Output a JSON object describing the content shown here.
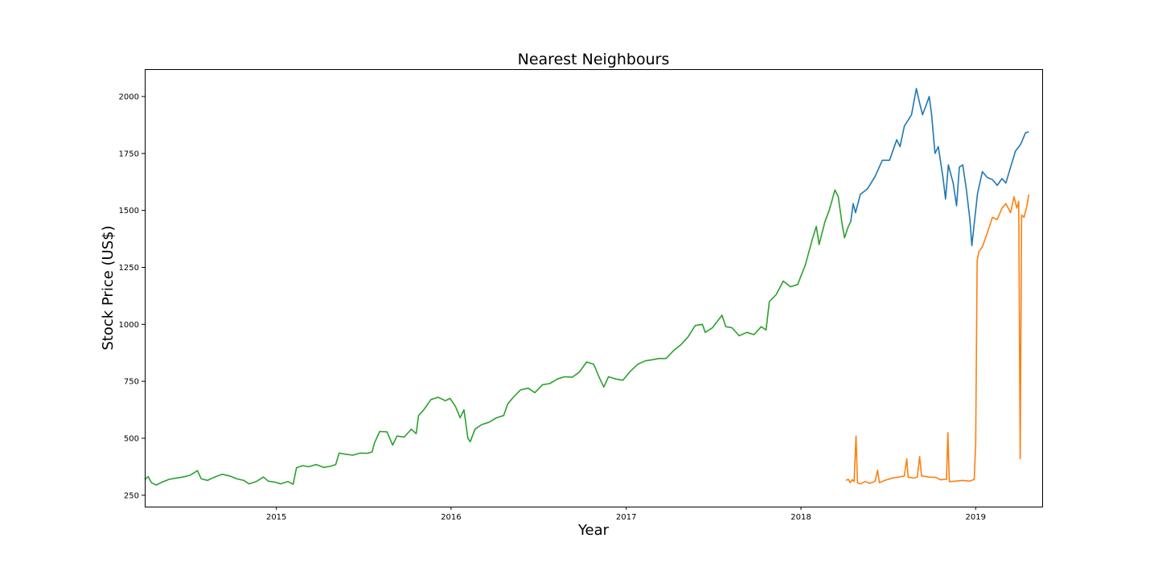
{
  "chart_data": {
    "type": "line",
    "title": "Nearest Neighbours",
    "xlabel": "Year",
    "ylabel": "Stock Price (US$)",
    "x_axis_type": "date",
    "xlim": [
      "2014-04-01",
      "2019-05-20"
    ],
    "ylim": [
      200,
      2120
    ],
    "x_ticks": [
      {
        "date": "2015-01-01",
        "label": "2015"
      },
      {
        "date": "2016-01-01",
        "label": "2016"
      },
      {
        "date": "2017-01-01",
        "label": "2017"
      },
      {
        "date": "2018-01-01",
        "label": "2018"
      },
      {
        "date": "2019-01-01",
        "label": "2019"
      }
    ],
    "y_ticks": [
      250,
      500,
      750,
      1000,
      1250,
      1500,
      1750,
      2000
    ],
    "grid": false,
    "legend": "none",
    "series": [
      {
        "color": "#2ca02c",
        "points": [
          [
            "2014-04-01",
            318
          ],
          [
            "2014-04-08",
            332
          ],
          [
            "2014-04-15",
            305
          ],
          [
            "2014-04-25",
            295
          ],
          [
            "2014-05-08",
            308
          ],
          [
            "2014-05-22",
            320
          ],
          [
            "2014-06-05",
            325
          ],
          [
            "2014-06-20",
            330
          ],
          [
            "2014-07-05",
            338
          ],
          [
            "2014-07-20",
            358
          ],
          [
            "2014-07-28",
            322
          ],
          [
            "2014-08-10",
            315
          ],
          [
            "2014-08-25",
            330
          ],
          [
            "2014-09-10",
            342
          ],
          [
            "2014-09-25",
            335
          ],
          [
            "2014-10-10",
            322
          ],
          [
            "2014-10-25",
            315
          ],
          [
            "2014-11-05",
            300
          ],
          [
            "2014-11-20",
            310
          ],
          [
            "2014-12-05",
            330
          ],
          [
            "2014-12-15",
            312
          ],
          [
            "2014-12-28",
            308
          ],
          [
            "2015-01-10",
            300
          ],
          [
            "2015-01-25",
            310
          ],
          [
            "2015-02-05",
            298
          ],
          [
            "2015-02-12",
            370
          ],
          [
            "2015-02-25",
            380
          ],
          [
            "2015-03-10",
            375
          ],
          [
            "2015-03-25",
            385
          ],
          [
            "2015-04-10",
            372
          ],
          [
            "2015-04-25",
            378
          ],
          [
            "2015-05-05",
            385
          ],
          [
            "2015-05-12",
            435
          ],
          [
            "2015-05-25",
            430
          ],
          [
            "2015-06-10",
            426
          ],
          [
            "2015-06-25",
            435
          ],
          [
            "2015-07-10",
            434
          ],
          [
            "2015-07-20",
            440
          ],
          [
            "2015-07-25",
            480
          ],
          [
            "2015-08-05",
            530
          ],
          [
            "2015-08-20",
            528
          ],
          [
            "2015-09-01",
            470
          ],
          [
            "2015-09-10",
            510
          ],
          [
            "2015-09-25",
            505
          ],
          [
            "2015-10-10",
            540
          ],
          [
            "2015-10-20",
            520
          ],
          [
            "2015-10-25",
            600
          ],
          [
            "2015-11-05",
            625
          ],
          [
            "2015-11-20",
            670
          ],
          [
            "2015-12-05",
            680
          ],
          [
            "2015-12-20",
            665
          ],
          [
            "2015-12-30",
            675
          ],
          [
            "2016-01-10",
            640
          ],
          [
            "2016-01-20",
            590
          ],
          [
            "2016-01-28",
            625
          ],
          [
            "2016-02-05",
            500
          ],
          [
            "2016-02-10",
            485
          ],
          [
            "2016-02-20",
            540
          ],
          [
            "2016-03-05",
            560
          ],
          [
            "2016-03-20",
            570
          ],
          [
            "2016-04-05",
            590
          ],
          [
            "2016-04-20",
            600
          ],
          [
            "2016-04-28",
            650
          ],
          [
            "2016-05-10",
            680
          ],
          [
            "2016-05-25",
            712
          ],
          [
            "2016-06-10",
            720
          ],
          [
            "2016-06-24",
            700
          ],
          [
            "2016-07-10",
            735
          ],
          [
            "2016-07-25",
            740
          ],
          [
            "2016-08-10",
            760
          ],
          [
            "2016-08-25",
            770
          ],
          [
            "2016-09-10",
            768
          ],
          [
            "2016-09-25",
            790
          ],
          [
            "2016-10-10",
            835
          ],
          [
            "2016-10-25",
            825
          ],
          [
            "2016-11-05",
            770
          ],
          [
            "2016-11-15",
            725
          ],
          [
            "2016-11-25",
            770
          ],
          [
            "2016-12-10",
            760
          ],
          [
            "2016-12-25",
            755
          ],
          [
            "2017-01-10",
            795
          ],
          [
            "2017-01-25",
            825
          ],
          [
            "2017-02-10",
            840
          ],
          [
            "2017-02-25",
            845
          ],
          [
            "2017-03-10",
            850
          ],
          [
            "2017-03-25",
            850
          ],
          [
            "2017-04-10",
            885
          ],
          [
            "2017-04-25",
            910
          ],
          [
            "2017-05-10",
            945
          ],
          [
            "2017-05-25",
            995
          ],
          [
            "2017-06-09",
            1000
          ],
          [
            "2017-06-15",
            965
          ],
          [
            "2017-06-30",
            985
          ],
          [
            "2017-07-20",
            1040
          ],
          [
            "2017-07-28",
            990
          ],
          [
            "2017-08-10",
            985
          ],
          [
            "2017-08-25",
            950
          ],
          [
            "2017-09-10",
            965
          ],
          [
            "2017-09-25",
            955
          ],
          [
            "2017-10-10",
            990
          ],
          [
            "2017-10-20",
            975
          ],
          [
            "2017-10-27",
            1100
          ],
          [
            "2017-11-10",
            1130
          ],
          [
            "2017-11-25",
            1190
          ],
          [
            "2017-12-10",
            1165
          ],
          [
            "2017-12-25",
            1175
          ],
          [
            "2018-01-10",
            1260
          ],
          [
            "2018-01-25",
            1375
          ],
          [
            "2018-02-02",
            1430
          ],
          [
            "2018-02-08",
            1350
          ],
          [
            "2018-02-20",
            1450
          ],
          [
            "2018-03-01",
            1500
          ],
          [
            "2018-03-13",
            1590
          ],
          [
            "2018-03-20",
            1560
          ],
          [
            "2018-03-28",
            1440
          ],
          [
            "2018-04-02",
            1380
          ],
          [
            "2018-04-10",
            1430
          ],
          [
            "2018-04-15",
            1450
          ]
        ]
      },
      {
        "color": "#1f77b4",
        "points": [
          [
            "2018-04-15",
            1450
          ],
          [
            "2018-04-20",
            1530
          ],
          [
            "2018-04-25",
            1490
          ],
          [
            "2018-05-05",
            1570
          ],
          [
            "2018-05-20",
            1595
          ],
          [
            "2018-06-05",
            1650
          ],
          [
            "2018-06-20",
            1720
          ],
          [
            "2018-07-05",
            1720
          ],
          [
            "2018-07-20",
            1810
          ],
          [
            "2018-07-27",
            1780
          ],
          [
            "2018-08-05",
            1870
          ],
          [
            "2018-08-20",
            1920
          ],
          [
            "2018-08-30",
            2035
          ],
          [
            "2018-09-05",
            1980
          ],
          [
            "2018-09-12",
            1920
          ],
          [
            "2018-09-20",
            1965
          ],
          [
            "2018-09-26",
            2000
          ],
          [
            "2018-10-01",
            1920
          ],
          [
            "2018-10-08",
            1750
          ],
          [
            "2018-10-15",
            1780
          ],
          [
            "2018-10-25",
            1640
          ],
          [
            "2018-10-30",
            1550
          ],
          [
            "2018-11-05",
            1700
          ],
          [
            "2018-11-15",
            1620
          ],
          [
            "2018-11-22",
            1520
          ],
          [
            "2018-11-28",
            1690
          ],
          [
            "2018-12-05",
            1700
          ],
          [
            "2018-12-12",
            1600
          ],
          [
            "2018-12-20",
            1460
          ],
          [
            "2018-12-24",
            1345
          ],
          [
            "2019-01-05",
            1575
          ],
          [
            "2019-01-15",
            1670
          ],
          [
            "2019-01-25",
            1645
          ],
          [
            "2019-02-05",
            1635
          ],
          [
            "2019-02-15",
            1610
          ],
          [
            "2019-02-25",
            1640
          ],
          [
            "2019-03-05",
            1620
          ],
          [
            "2019-03-15",
            1690
          ],
          [
            "2019-03-25",
            1760
          ],
          [
            "2019-04-05",
            1790
          ],
          [
            "2019-04-15",
            1840
          ],
          [
            "2019-04-22",
            1845
          ]
        ]
      },
      {
        "color": "#ff7f0e",
        "points": [
          [
            "2018-04-05",
            315
          ],
          [
            "2018-04-10",
            320
          ],
          [
            "2018-04-14",
            305
          ],
          [
            "2018-04-18",
            318
          ],
          [
            "2018-04-22",
            310
          ],
          [
            "2018-04-26",
            510
          ],
          [
            "2018-04-29",
            305
          ],
          [
            "2018-05-05",
            300
          ],
          [
            "2018-05-15",
            310
          ],
          [
            "2018-05-25",
            302
          ],
          [
            "2018-06-05",
            312
          ],
          [
            "2018-06-10",
            360
          ],
          [
            "2018-06-14",
            305
          ],
          [
            "2018-06-25",
            315
          ],
          [
            "2018-07-10",
            325
          ],
          [
            "2018-07-25",
            330
          ],
          [
            "2018-08-05",
            335
          ],
          [
            "2018-08-10",
            410
          ],
          [
            "2018-08-13",
            330
          ],
          [
            "2018-08-25",
            325
          ],
          [
            "2018-09-01",
            330
          ],
          [
            "2018-09-06",
            420
          ],
          [
            "2018-09-10",
            335
          ],
          [
            "2018-09-25",
            330
          ],
          [
            "2018-10-10",
            328
          ],
          [
            "2018-10-20",
            318
          ],
          [
            "2018-11-01",
            320
          ],
          [
            "2018-11-04",
            525
          ],
          [
            "2018-11-07",
            310
          ],
          [
            "2018-11-20",
            312
          ],
          [
            "2018-12-05",
            315
          ],
          [
            "2018-12-20",
            312
          ],
          [
            "2018-12-29",
            320
          ],
          [
            "2019-01-01",
            480
          ],
          [
            "2019-01-04",
            1280
          ],
          [
            "2019-01-08",
            1320
          ],
          [
            "2019-01-15",
            1340
          ],
          [
            "2019-01-25",
            1400
          ],
          [
            "2019-02-05",
            1470
          ],
          [
            "2019-02-15",
            1460
          ],
          [
            "2019-02-25",
            1510
          ],
          [
            "2019-03-05",
            1530
          ],
          [
            "2019-03-15",
            1490
          ],
          [
            "2019-03-22",
            1560
          ],
          [
            "2019-03-28",
            1510
          ],
          [
            "2019-04-01",
            1540
          ],
          [
            "2019-04-04",
            410
          ],
          [
            "2019-04-07",
            1480
          ],
          [
            "2019-04-12",
            1470
          ],
          [
            "2019-04-18",
            1520
          ],
          [
            "2019-04-22",
            1570
          ]
        ]
      }
    ]
  }
}
